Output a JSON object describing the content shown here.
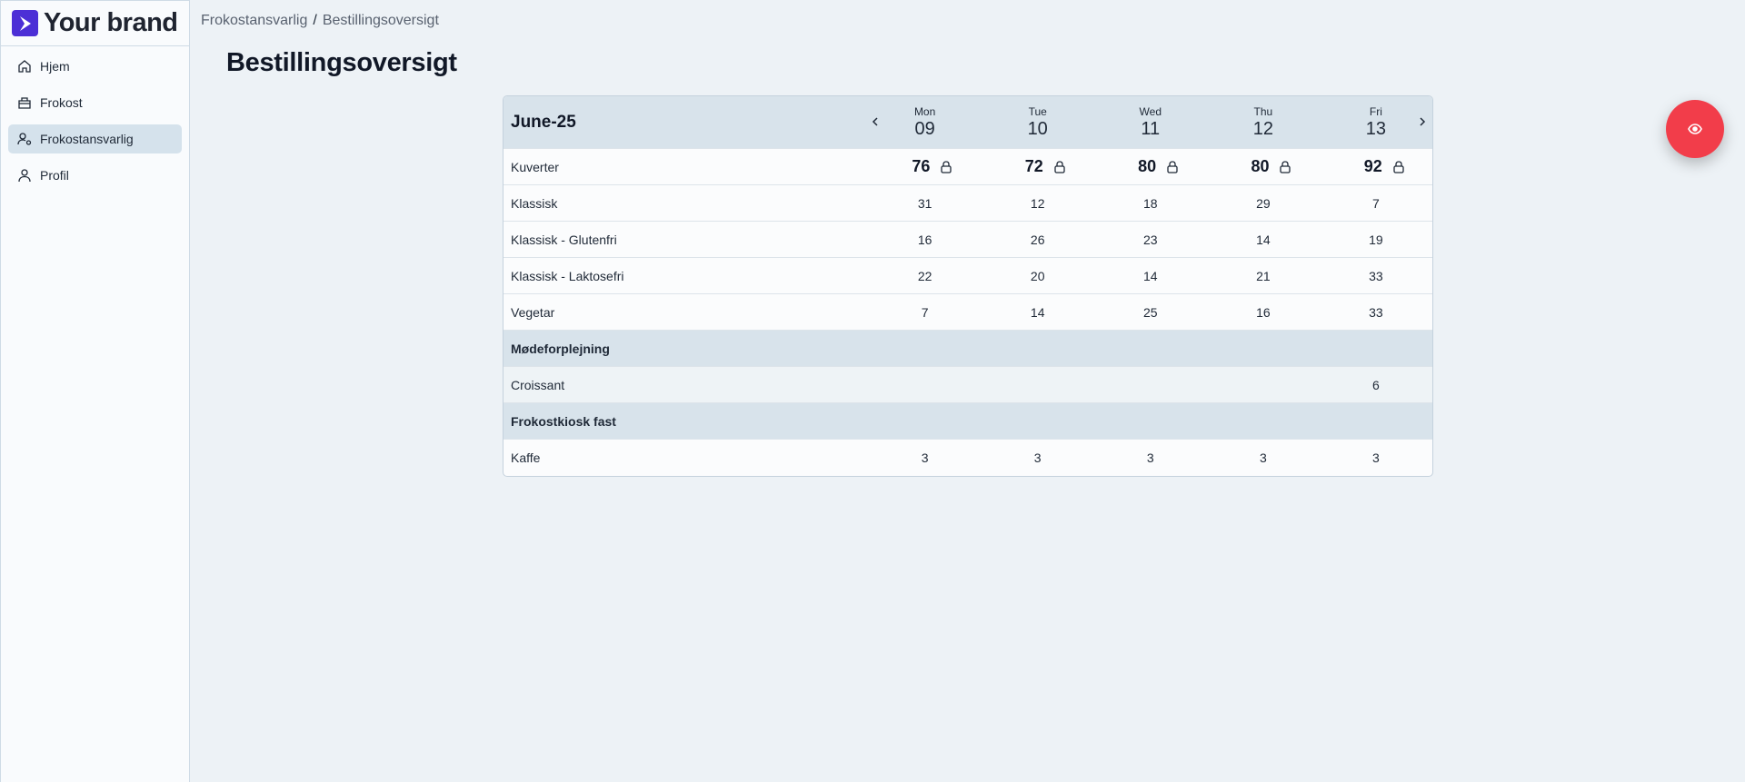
{
  "brand": {
    "name": "Your brand",
    "accent": "#4c2fd6"
  },
  "sidebar": {
    "items": [
      {
        "label": "Hjem",
        "icon": "home-icon"
      },
      {
        "label": "Frokost",
        "icon": "lunchbox-icon"
      },
      {
        "label": "Frokostansvarlig",
        "icon": "user-settings-icon",
        "active": true
      },
      {
        "label": "Profil",
        "icon": "user-icon"
      }
    ]
  },
  "breadcrumb": {
    "parent": "Frokostansvarlig",
    "separator": "/",
    "current": "Bestillingsoversigt"
  },
  "page": {
    "title": "Bestillingsoversigt"
  },
  "table": {
    "period": "June-25",
    "days": [
      {
        "name": "Mon",
        "num": "09"
      },
      {
        "name": "Tue",
        "num": "10"
      },
      {
        "name": "Wed",
        "num": "11"
      },
      {
        "name": "Thu",
        "num": "12"
      },
      {
        "name": "Fri",
        "num": "13"
      }
    ],
    "covers": {
      "label": "Kuverter",
      "values": [
        "76",
        "72",
        "80",
        "80",
        "92"
      ]
    },
    "rows": [
      {
        "label": "Klassisk",
        "values": [
          "31",
          "12",
          "18",
          "29",
          "7"
        ]
      },
      {
        "label": "Klassisk - Glutenfri",
        "values": [
          "16",
          "26",
          "23",
          "14",
          "19"
        ]
      },
      {
        "label": "Klassisk - Laktosefri",
        "values": [
          "22",
          "20",
          "14",
          "21",
          "33"
        ]
      },
      {
        "label": "Vegetar",
        "values": [
          "7",
          "14",
          "25",
          "16",
          "33"
        ]
      }
    ],
    "section1": {
      "label": "Mødeforplejning"
    },
    "section1_rows": [
      {
        "label": "Croissant",
        "values": [
          "",
          "",
          "",
          "",
          "6"
        ]
      }
    ],
    "section2": {
      "label": "Frokostkiosk fast"
    },
    "section2_rows": [
      {
        "label": "Kaffe",
        "values": [
          "3",
          "3",
          "3",
          "3",
          "3"
        ]
      }
    ]
  },
  "fab": {
    "icon": "eye-icon",
    "color": "#f23d4a"
  }
}
